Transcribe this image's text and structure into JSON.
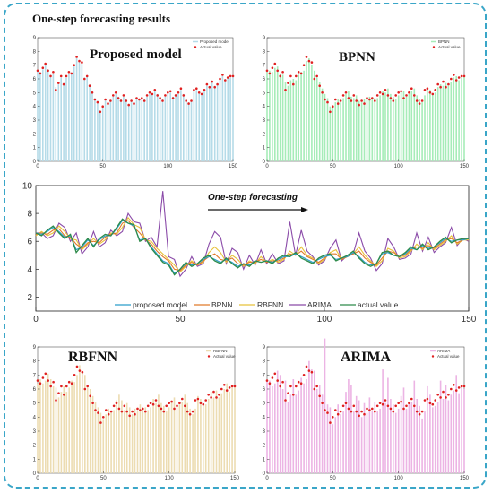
{
  "page_title": "One-step forecasting results",
  "colors": {
    "frame": "#3aa6c8",
    "proposed": "#2a9ec9",
    "bpnn": "#e07a2a",
    "rbfnn": "#e8c23a",
    "arima": "#8a4aa8",
    "actual": "#2e8b4a",
    "actual_marker": "#e02020",
    "bar_proposed": "#b5dbe8",
    "bar_bpnn": "#a6ecb8",
    "bar_rbfnn": "#ecdcb2",
    "bar_arima": "#ecb4e4"
  },
  "chart_data": [
    {
      "type": "bar",
      "title": "Proposed model",
      "legend": [
        "Proposed model",
        "Actual value"
      ],
      "legend_position": "top-right",
      "xlim": [
        0,
        150
      ],
      "ylim": [
        0,
        9
      ],
      "xticks": [
        "0",
        "50",
        "100",
        "150"
      ],
      "yticks": [
        "0",
        "1",
        "2",
        "3",
        "4",
        "5",
        "6",
        "7",
        "8",
        "9"
      ]
    },
    {
      "type": "bar",
      "title": "BPNN",
      "legend": [
        "BPNN",
        "Actual value"
      ],
      "legend_position": "top-right",
      "xlim": [
        0,
        150
      ],
      "ylim": [
        0,
        9
      ],
      "xticks": [
        "0",
        "50",
        "100",
        "150"
      ],
      "yticks": [
        "0",
        "1",
        "2",
        "3",
        "4",
        "5",
        "6",
        "7",
        "8",
        "9"
      ]
    },
    {
      "type": "line",
      "annotation": "One-step forecasting",
      "legend": [
        "proposed model",
        "BPNN",
        "RBFNN",
        "ARIMA",
        "actual value"
      ],
      "legend_position": "bottom",
      "xlim": [
        0,
        150
      ],
      "ylim": [
        1,
        10
      ],
      "xticks": [
        "0",
        "50",
        "100",
        "150"
      ],
      "yticks": [
        "2",
        "4",
        "6",
        "8",
        "10"
      ],
      "x": [
        0,
        2,
        4,
        6,
        8,
        10,
        12,
        14,
        16,
        18,
        20,
        22,
        24,
        26,
        28,
        30,
        32,
        34,
        36,
        38,
        40,
        42,
        44,
        46,
        48,
        50,
        52,
        54,
        56,
        58,
        60,
        62,
        64,
        66,
        68,
        70,
        72,
        74,
        76,
        78,
        80,
        82,
        84,
        86,
        88,
        90,
        92,
        94,
        96,
        98,
        100,
        102,
        104,
        106,
        108,
        110,
        112,
        114,
        116,
        118,
        120,
        122,
        124,
        126,
        128,
        130,
        132,
        134,
        136,
        138,
        140,
        142,
        144,
        146,
        148,
        150
      ],
      "actual": [
        6.6,
        6.4,
        6.8,
        7.1,
        6.6,
        6.2,
        6.5,
        5.2,
        5.7,
        6.2,
        5.6,
        6.2,
        6.5,
        6.4,
        7.0,
        7.6,
        7.3,
        7.2,
        6.0,
        6.2,
        5.5,
        5.0,
        4.5,
        4.3,
        3.6,
        4.0,
        4.5,
        4.2,
        4.4,
        4.8,
        5.0,
        4.6,
        4.4,
        4.8,
        4.4,
        4.1,
        4.4,
        4.2,
        4.6,
        4.5,
        4.6,
        4.4,
        4.8,
        5.0,
        4.9,
        5.2,
        4.8,
        4.6,
        4.4,
        4.8,
        5.0,
        5.1,
        4.6,
        4.8,
        5.0,
        5.3,
        4.8,
        4.4,
        4.2,
        4.4,
        5.2,
        5.3,
        5.0,
        4.9,
        5.2,
        5.6,
        5.4,
        5.8,
        5.4,
        5.6,
        6.0,
        6.3,
        5.9,
        6.1,
        6.2,
        6.2
      ],
      "series": [
        {
          "name": "proposed model",
          "values": [
            6.6,
            6.5,
            6.7,
            7.0,
            6.7,
            6.3,
            6.4,
            5.4,
            5.6,
            6.1,
            5.7,
            6.1,
            6.4,
            6.4,
            6.9,
            7.5,
            7.3,
            7.1,
            6.1,
            6.2,
            5.6,
            5.1,
            4.6,
            4.4,
            3.7,
            4.0,
            4.4,
            4.3,
            4.4,
            4.7,
            4.9,
            4.7,
            4.5,
            4.7,
            4.5,
            4.2,
            4.4,
            4.3,
            4.6,
            4.5,
            4.6,
            4.5,
            4.7,
            4.9,
            4.9,
            5.1,
            4.9,
            4.7,
            4.5,
            4.7,
            4.9,
            5.0,
            4.7,
            4.8,
            4.9,
            5.2,
            4.9,
            4.5,
            4.3,
            4.4,
            5.1,
            5.2,
            5.0,
            4.9,
            5.1,
            5.5,
            5.4,
            5.7,
            5.5,
            5.6,
            5.9,
            6.2,
            6.0,
            6.1,
            6.1,
            6.2
          ]
        },
        {
          "name": "BPNN",
          "values": [
            6.5,
            6.6,
            6.5,
            6.8,
            6.9,
            6.4,
            6.3,
            5.8,
            5.5,
            5.9,
            6.0,
            5.9,
            6.3,
            6.5,
            6.6,
            7.3,
            7.5,
            7.0,
            6.6,
            6.1,
            5.8,
            5.3,
            4.9,
            4.6,
            4.0,
            3.9,
            4.3,
            4.5,
            4.3,
            4.6,
            4.9,
            5.1,
            4.7,
            4.6,
            4.8,
            4.4,
            4.3,
            4.5,
            4.5,
            4.7,
            4.5,
            4.6,
            4.6,
            4.8,
            5.1,
            5.0,
            5.3,
            4.9,
            4.7,
            4.5,
            4.8,
            5.1,
            5.1,
            4.7,
            4.9,
            5.1,
            5.3,
            4.8,
            4.5,
            4.3,
            4.8,
            5.3,
            5.2,
            4.9,
            5.0,
            5.4,
            5.6,
            5.5,
            5.7,
            5.5,
            5.8,
            6.1,
            6.2,
            5.9,
            6.1,
            6.2
          ]
        },
        {
          "name": "RBFNN",
          "values": [
            6.4,
            6.7,
            6.4,
            6.6,
            7.1,
            6.7,
            6.2,
            6.1,
            5.4,
            5.8,
            6.2,
            5.8,
            6.1,
            6.6,
            6.5,
            7.0,
            7.7,
            7.2,
            7.0,
            6.1,
            6.0,
            5.5,
            5.1,
            4.7,
            4.3,
            3.8,
            4.2,
            4.6,
            4.3,
            4.5,
            5.2,
            5.6,
            5.2,
            4.5,
            5.0,
            4.7,
            4.2,
            4.6,
            4.4,
            4.9,
            4.5,
            4.7,
            4.5,
            4.7,
            5.3,
            5.0,
            5.6,
            5.0,
            4.8,
            4.4,
            4.7,
            5.2,
            5.4,
            4.7,
            4.9,
            5.1,
            5.6,
            5.0,
            4.6,
            4.2,
            4.6,
            5.5,
            5.3,
            4.8,
            4.9,
            5.3,
            5.8,
            5.4,
            5.9,
            5.4,
            5.7,
            6.0,
            6.4,
            5.8,
            6.1,
            6.1
          ]
        },
        {
          "name": "ARIMA",
          "values": [
            6.6,
            6.6,
            6.2,
            6.4,
            7.3,
            7.0,
            6.0,
            6.6,
            5.1,
            5.6,
            6.7,
            5.6,
            5.9,
            6.8,
            6.4,
            6.7,
            8.0,
            7.4,
            7.3,
            6.0,
            6.3,
            5.6,
            9.6,
            4.9,
            4.7,
            3.5,
            4.0,
            4.9,
            4.2,
            4.4,
            5.8,
            6.7,
            6.3,
            4.4,
            5.5,
            5.2,
            4.0,
            5.0,
            4.3,
            5.4,
            4.4,
            5.1,
            4.4,
            4.6,
            7.4,
            5.0,
            6.8,
            5.3,
            4.9,
            4.3,
            4.6,
            5.5,
            6.1,
            4.6,
            5.0,
            5.1,
            6.6,
            5.3,
            4.8,
            3.9,
            4.4,
            6.2,
            5.6,
            4.7,
            4.8,
            5.1,
            6.6,
            5.3,
            6.3,
            5.2,
            5.6,
            5.9,
            7.0,
            5.7,
            6.2,
            6.0
          ]
        }
      ]
    },
    {
      "type": "bar",
      "title": "RBFNN",
      "legend": [
        "RBFNN",
        "Actual value"
      ],
      "legend_position": "top-right",
      "xlim": [
        0,
        150
      ],
      "ylim": [
        0,
        9
      ],
      "xticks": [
        "0",
        "50",
        "100",
        "150"
      ],
      "yticks": [
        "0",
        "1",
        "2",
        "3",
        "4",
        "5",
        "6",
        "7",
        "8",
        "9"
      ]
    },
    {
      "type": "bar",
      "title": "ARIMA",
      "legend": [
        "ARIMA",
        "Actual value"
      ],
      "legend_position": "top-right",
      "xlim": [
        0,
        150
      ],
      "ylim": [
        0,
        9
      ],
      "xticks": [
        "0",
        "50",
        "100",
        "150"
      ],
      "yticks": [
        "0",
        "1",
        "2",
        "3",
        "4",
        "5",
        "6",
        "7",
        "8",
        "9"
      ]
    }
  ]
}
